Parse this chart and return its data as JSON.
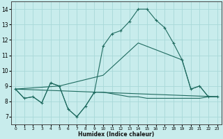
{
  "xlabel": "Humidex (Indice chaleur)",
  "xlim": [
    -0.5,
    23.5
  ],
  "ylim": [
    6.5,
    14.5
  ],
  "yticks": [
    7,
    8,
    9,
    10,
    11,
    12,
    13,
    14
  ],
  "xticks": [
    0,
    1,
    2,
    3,
    4,
    5,
    6,
    7,
    8,
    9,
    10,
    11,
    12,
    13,
    14,
    15,
    16,
    17,
    18,
    19,
    20,
    21,
    22,
    23
  ],
  "line_color": "#1F6B60",
  "bg_color": "#C8ECEC",
  "grid_color": "#A8D8D8",
  "series": [
    {
      "x": [
        0,
        1,
        2,
        3,
        4,
        5,
        6,
        7,
        8,
        9,
        10,
        11,
        12,
        13,
        14,
        15,
        16,
        17,
        18,
        19,
        20,
        21,
        22,
        23
      ],
      "y": [
        8.8,
        8.2,
        8.3,
        7.9,
        9.2,
        9.0,
        7.5,
        7.0,
        7.7,
        8.6,
        11.6,
        12.4,
        12.6,
        13.2,
        14.0,
        14.0,
        13.3,
        12.8,
        11.8,
        10.7,
        8.8,
        9.0,
        8.3,
        8.3
      ],
      "marker": true
    },
    {
      "x": [
        0,
        5,
        10,
        14,
        19,
        20,
        21,
        22,
        23
      ],
      "y": [
        8.8,
        9.0,
        9.7,
        11.8,
        10.7,
        8.8,
        9.0,
        8.3,
        8.3
      ],
      "marker": false
    },
    {
      "x": [
        0,
        23
      ],
      "y": [
        8.8,
        8.3
      ],
      "marker": false
    },
    {
      "x": [
        0,
        1,
        2,
        3,
        4,
        5,
        6,
        7,
        8,
        9,
        10,
        11,
        12,
        13,
        14,
        15,
        16,
        17,
        18,
        19,
        20,
        21,
        22,
        23
      ],
      "y": [
        8.8,
        8.2,
        8.3,
        7.9,
        9.2,
        9.0,
        7.5,
        7.0,
        7.7,
        8.6,
        8.6,
        8.5,
        8.4,
        8.3,
        8.3,
        8.2,
        8.2,
        8.2,
        8.2,
        8.2,
        8.2,
        8.2,
        8.3,
        8.3
      ],
      "marker": false
    }
  ]
}
